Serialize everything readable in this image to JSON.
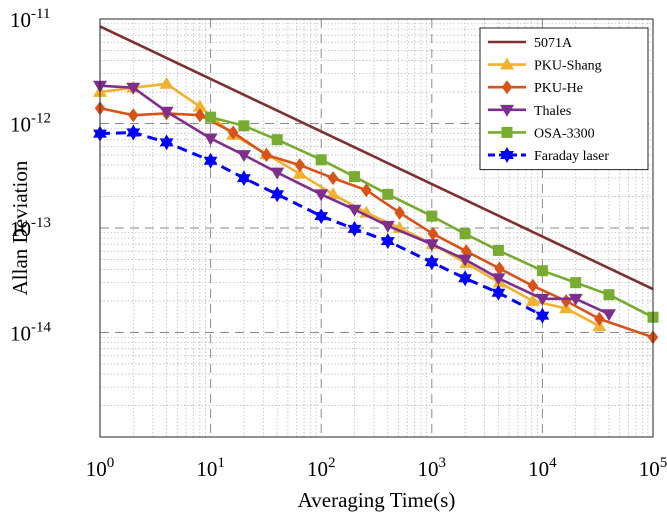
{
  "chart_data": {
    "type": "line",
    "xlabel": "Averaging Time(s)",
    "ylabel": "Allan Deviation",
    "xscale": "log",
    "yscale": "log",
    "xlim": [
      1,
      100000
    ],
    "ylim": [
      1e-15,
      1e-11
    ],
    "x_ticks": [
      {
        "value": 1,
        "base": "10",
        "exp": "0"
      },
      {
        "value": 10,
        "base": "10",
        "exp": "1"
      },
      {
        "value": 100,
        "base": "10",
        "exp": "2"
      },
      {
        "value": 1000,
        "base": "10",
        "exp": "3"
      },
      {
        "value": 10000,
        "base": "10",
        "exp": "4"
      },
      {
        "value": 100000,
        "base": "10",
        "exp": "5"
      }
    ],
    "y_ticks": [
      {
        "value": 1e-14,
        "base": "10",
        "exp": "-14"
      },
      {
        "value": 1e-13,
        "base": "10",
        "exp": "-13"
      },
      {
        "value": 1e-12,
        "base": "10",
        "exp": "-12"
      },
      {
        "value": 1e-11,
        "base": "10",
        "exp": "-11"
      }
    ],
    "grid": true,
    "legend_position": "top-right",
    "series": [
      {
        "name": "5071A",
        "color": "#7e2f2e",
        "marker": "none",
        "dash": "solid",
        "x": [
          1,
          100000
        ],
        "y": [
          8.5e-12,
          2.6e-14
        ]
      },
      {
        "name": "PKU-Shang",
        "color": "#f2b12e",
        "marker": "triangle-up",
        "dash": "solid",
        "x": [
          1,
          2,
          4,
          8,
          16,
          32,
          64,
          128,
          256,
          512,
          1024,
          2048,
          4096,
          8192,
          16384,
          32768
        ],
        "y": [
          2e-12,
          2.2e-12,
          2.4e-12,
          1.45e-12,
          7.8e-13,
          5.1e-13,
          3.3e-13,
          2.1e-13,
          1.4e-13,
          1e-13,
          7e-14,
          4.6e-14,
          3e-14,
          2e-14,
          1.7e-14,
          1.15e-14
        ]
      },
      {
        "name": "PKU-He",
        "color": "#d95319",
        "marker": "diamond",
        "dash": "solid",
        "x": [
          1,
          2,
          4,
          8,
          16,
          32,
          64,
          128,
          256,
          512,
          1024,
          2048,
          4096,
          8192,
          16384,
          32768,
          100000
        ],
        "y": [
          1.4e-12,
          1.2e-12,
          1.25e-12,
          1.2e-12,
          8.2e-13,
          5e-13,
          4e-13,
          3e-13,
          2.3e-13,
          1.4e-13,
          8.8e-14,
          6e-14,
          4.1e-14,
          2.8e-14,
          2e-14,
          1.35e-14,
          9e-15
        ]
      },
      {
        "name": "Thales",
        "color": "#7e2f8e",
        "marker": "triangle-down",
        "dash": "solid",
        "x": [
          1,
          2,
          4,
          10,
          20,
          40,
          100,
          200,
          400,
          1000,
          2000,
          4000,
          10000,
          20000,
          40000
        ],
        "y": [
          2.3e-12,
          2.2e-12,
          1.3e-12,
          7.2e-13,
          5e-13,
          3.4e-13,
          2.1e-13,
          1.5e-13,
          1.05e-13,
          7e-14,
          5e-14,
          3.3e-14,
          2.1e-14,
          2.1e-14,
          1.5e-14
        ]
      },
      {
        "name": "OSA-3300",
        "color": "#77ac30",
        "marker": "square",
        "dash": "solid",
        "x": [
          10,
          20,
          40,
          100,
          200,
          400,
          1000,
          2000,
          4000,
          10000,
          20000,
          40000,
          100000
        ],
        "y": [
          1.15e-12,
          9.5e-13,
          7e-13,
          4.5e-13,
          3.1e-13,
          2.1e-13,
          1.3e-13,
          8.8e-14,
          6.1e-14,
          3.9e-14,
          3e-14,
          2.3e-14,
          1.4e-14
        ]
      },
      {
        "name": "Faraday laser",
        "color": "#0000ff",
        "marker": "hexagram",
        "dash": "dashed",
        "x": [
          1,
          2,
          4,
          10,
          20,
          40,
          100,
          200,
          400,
          1000,
          2000,
          4000,
          10000
        ],
        "y": [
          8e-13,
          8.2e-13,
          6.6e-13,
          4.4e-13,
          3e-13,
          2.1e-13,
          1.3e-13,
          9.8e-14,
          7.5e-14,
          4.7e-14,
          3.3e-14,
          2.4e-14,
          1.45e-14
        ]
      }
    ]
  }
}
